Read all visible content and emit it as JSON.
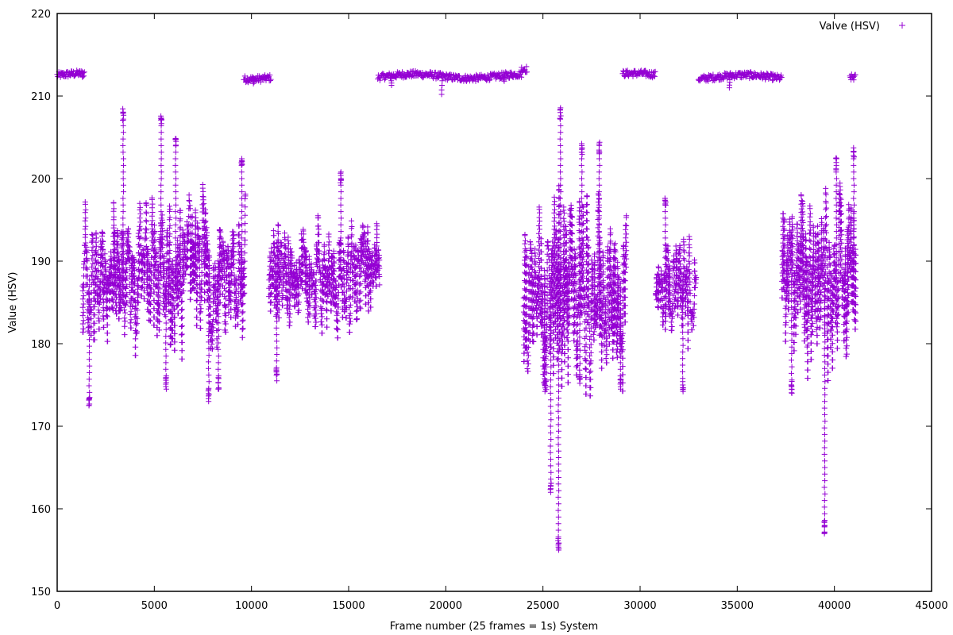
{
  "chart_data": {
    "type": "scatter",
    "title": "",
    "xlabel": "Frame number (25 frames = 1s) System",
    "ylabel": "Value (HSV)",
    "xlim": [
      0,
      45000
    ],
    "ylim": [
      150,
      220
    ],
    "x_ticks": [
      "0",
      "5000",
      "10000",
      "15000",
      "20000",
      "25000",
      "30000",
      "35000",
      "40000",
      "45000"
    ],
    "y_ticks": [
      "150",
      "160",
      "170",
      "180",
      "190",
      "200",
      "210",
      "220"
    ],
    "grid": false,
    "legend_position": "top-right",
    "marker": "plus",
    "series": [
      {
        "name": "Valve (HSV)",
        "color": "#9400d3",
        "high_band_segments": [
          {
            "x_start": 0,
            "x_end": 1400,
            "y": 212.5,
            "dips": [
              [
                1300,
                212.3
              ]
            ]
          },
          {
            "x_start": 9600,
            "x_end": 11000,
            "y": 212.3,
            "dips": [
              [
                10100,
                211.5
              ]
            ]
          },
          {
            "x_start": 16500,
            "x_end": 23900,
            "y": 212.4,
            "dips": [
              [
                17200,
                211.3
              ],
              [
                19800,
                210.2
              ],
              [
                23000,
                211.8
              ]
            ]
          },
          {
            "x_start": 23900,
            "x_end": 24200,
            "y": 213.0,
            "dips": []
          },
          {
            "x_start": 29100,
            "x_end": 30800,
            "y": 212.5,
            "dips": []
          },
          {
            "x_start": 33000,
            "x_end": 37300,
            "y": 212.3,
            "dips": [
              [
                34600,
                211.0
              ]
            ]
          },
          {
            "x_start": 40800,
            "x_end": 41100,
            "y": 212.0,
            "dips": []
          }
        ],
        "low_band_segments": [
          {
            "x_start": 1300,
            "x_end": 9700,
            "y_min": 172.3,
            "y_max": 208.5,
            "center": 188
          },
          {
            "x_start": 10900,
            "x_end": 16600,
            "y_min": 175.3,
            "y_max": 201.0,
            "center": 188
          },
          {
            "x_start": 24000,
            "x_end": 29300,
            "y_min": 155.0,
            "y_max": 208.7,
            "center": 186
          },
          {
            "x_start": 30800,
            "x_end": 32900,
            "y_min": 174.0,
            "y_max": 198.0,
            "center": 186
          },
          {
            "x_start": 37300,
            "x_end": 41100,
            "y_min": 157.0,
            "y_max": 204.0,
            "center": 188
          }
        ],
        "peaks": [
          [
            1650,
            172.5
          ],
          [
            3400,
            208.5
          ],
          [
            5350,
            208.0
          ],
          [
            5600,
            174.5
          ],
          [
            6100,
            205.0
          ],
          [
            7800,
            173.0
          ],
          [
            8300,
            174.5
          ],
          [
            9500,
            203.0
          ],
          [
            11300,
            175.5
          ],
          [
            14600,
            201.0
          ],
          [
            25100,
            174.2
          ],
          [
            25400,
            162.0
          ],
          [
            25800,
            155.0
          ],
          [
            25900,
            208.7
          ],
          [
            26900,
            175.2
          ],
          [
            27000,
            204.3
          ],
          [
            27900,
            204.5
          ],
          [
            29000,
            174.5
          ],
          [
            31300,
            198.0
          ],
          [
            32200,
            174.2
          ],
          [
            37800,
            174.0
          ],
          [
            39500,
            157.0
          ],
          [
            40100,
            202.5
          ],
          [
            41000,
            204.0
          ]
        ]
      }
    ]
  }
}
